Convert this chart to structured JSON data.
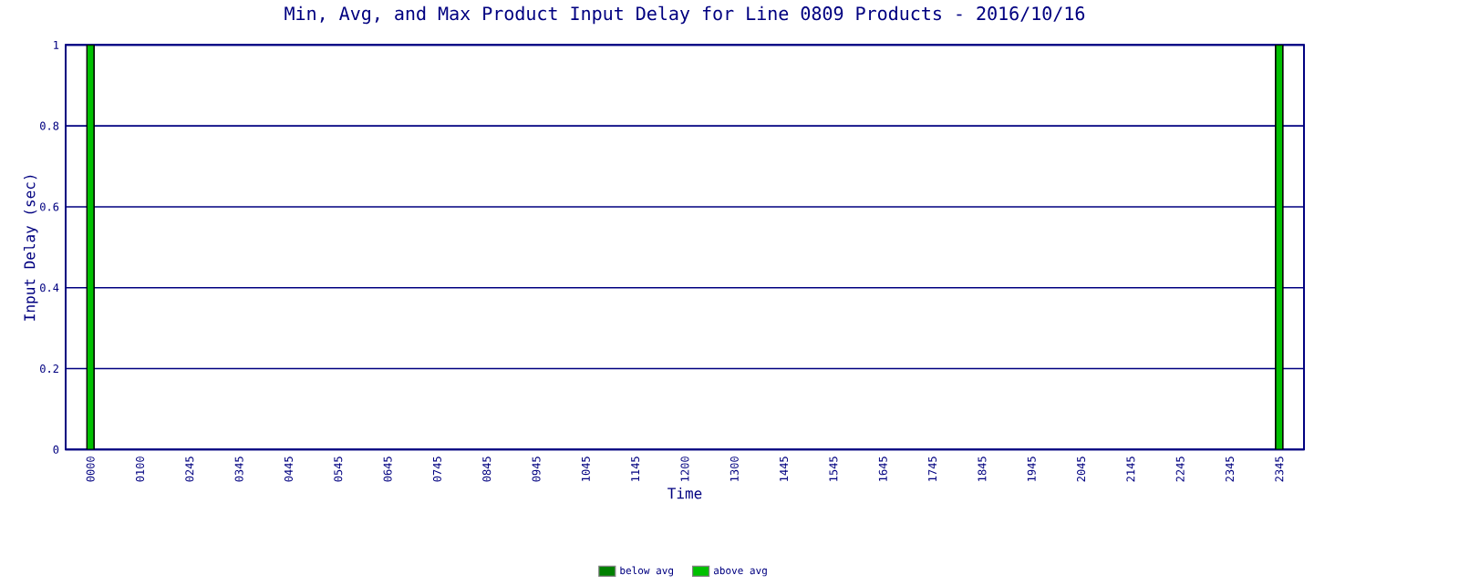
{
  "chart_data": {
    "type": "bar",
    "title": "Min, Avg, and Max Product Input Delay for Line 0809 Products - 2016/10/16",
    "xlabel": "Time",
    "ylabel": "Input Delay (sec)",
    "categories": [
      "0000",
      "0100",
      "0245",
      "0345",
      "0445",
      "0545",
      "0645",
      "0745",
      "0845",
      "0945",
      "1045",
      "1145",
      "1200",
      "1300",
      "1445",
      "1545",
      "1645",
      "1745",
      "1845",
      "1945",
      "2045",
      "2145",
      "2245",
      "2345",
      "2345"
    ],
    "stacked": true,
    "series": [
      {
        "name": "below avg",
        "color": "#008000",
        "values": [
          0,
          null,
          null,
          null,
          null,
          null,
          null,
          null,
          null,
          null,
          null,
          null,
          null,
          null,
          null,
          null,
          null,
          null,
          null,
          null,
          null,
          null,
          null,
          null,
          0
        ]
      },
      {
        "name": "above avg",
        "color": "#00c000",
        "values": [
          1,
          null,
          null,
          null,
          null,
          null,
          null,
          null,
          null,
          null,
          null,
          null,
          null,
          null,
          null,
          null,
          null,
          null,
          null,
          null,
          null,
          null,
          null,
          null,
          1
        ]
      }
    ],
    "ylim": [
      0,
      1
    ],
    "yticks": [
      0,
      0.2,
      0.4,
      0.6,
      0.8,
      1
    ],
    "grid": "y",
    "legend": "bottom"
  }
}
